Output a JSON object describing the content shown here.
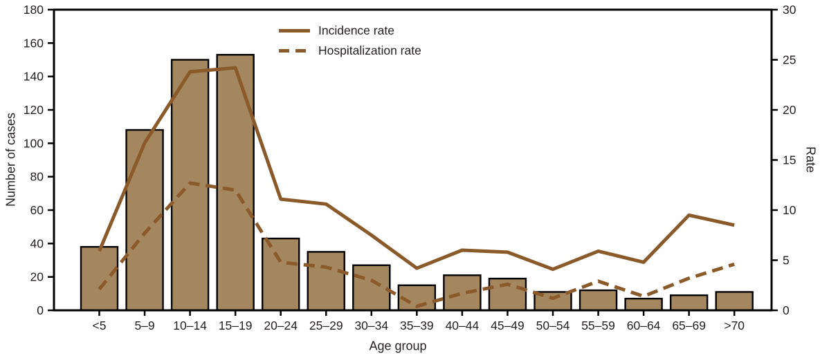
{
  "chart_data": {
    "type": "combo-bar-line",
    "title": "",
    "xlabel": "Age group",
    "grid": "off",
    "categories": [
      "<5",
      "5–9",
      "10–14",
      "15–19",
      "20–24",
      "25–29",
      "30–34",
      "35–39",
      "40–44",
      "45–49",
      "50–54",
      "55–59",
      "60–64",
      "65–69",
      ">70"
    ],
    "series": [
      {
        "name": "Number of cases",
        "type": "bar",
        "axis": "left",
        "values": [
          38,
          108,
          150,
          153,
          43,
          35,
          27,
          15,
          21,
          19,
          11,
          12,
          7,
          9,
          11
        ]
      },
      {
        "name": "Incidence rate",
        "type": "line",
        "line_style": "solid",
        "axis": "right",
        "values": [
          5.9,
          16.7,
          23.8,
          24.2,
          11.1,
          10.6,
          7.5,
          4.2,
          6.0,
          5.8,
          4.1,
          5.9,
          4.8,
          9.5,
          8.5
        ]
      },
      {
        "name": "Hospitalization rate",
        "type": "line",
        "line_style": "dashed",
        "axis": "right",
        "values": [
          2.1,
          7.7,
          12.7,
          12.0,
          4.8,
          4.3,
          3.0,
          0.4,
          1.7,
          2.6,
          1.2,
          2.9,
          1.4,
          3.2,
          4.6
        ]
      }
    ],
    "left_axis": {
      "label": "Number of cases",
      "min": 0,
      "max": 180,
      "step": 20,
      "ticks": [
        0,
        20,
        40,
        60,
        80,
        100,
        120,
        140,
        160,
        180
      ]
    },
    "right_axis": {
      "label": "Rate",
      "min": 0,
      "max": 30,
      "step": 5,
      "ticks": [
        0,
        5,
        10,
        15,
        20,
        25,
        30
      ]
    },
    "legend": {
      "position": "top-center",
      "items": [
        {
          "label": "Incidence rate",
          "line_style": "solid"
        },
        {
          "label": "Hospitalization rate",
          "line_style": "dashed"
        }
      ]
    },
    "colors": {
      "bar_fill": "#a5875f",
      "bar_stroke": "#000000",
      "line": "#8a5a2b",
      "axis": "#000000",
      "text": "#231f20",
      "background": "#ffffff"
    }
  }
}
